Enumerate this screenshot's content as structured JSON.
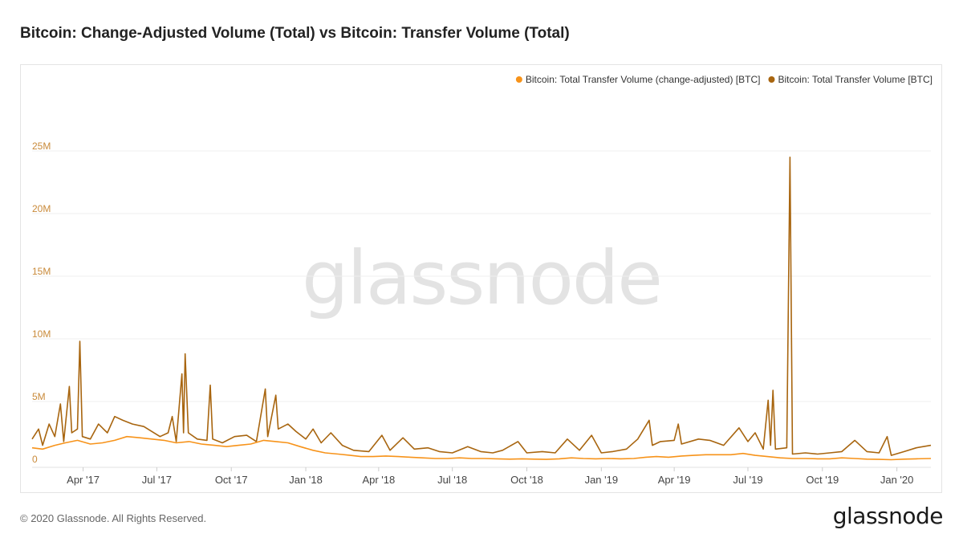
{
  "title": "Bitcoin: Change-Adjusted Volume (Total) vs Bitcoin: Transfer Volume (Total)",
  "footer": {
    "copyright": "© 2020 Glassnode. All Rights Reserved.",
    "brand": "glassnode"
  },
  "watermark": "glassnode",
  "colors": {
    "series1": "#f7931a",
    "series2": "#a8650f",
    "axis_label": "#c98a3a",
    "grid": "#efefef"
  },
  "chart_data": {
    "type": "line",
    "title": "Bitcoin: Change-Adjusted Volume (Total) vs Bitcoin: Transfer Volume (Total)",
    "xlabel": "",
    "ylabel": "",
    "x_range": [
      "2017-01-28",
      "2020-02-12"
    ],
    "ylim": [
      0,
      25000000
    ],
    "y_ticks": [
      {
        "value": 0,
        "label": "0"
      },
      {
        "value": 5000000,
        "label": "5M"
      },
      {
        "value": 10000000,
        "label": "10M"
      },
      {
        "value": 15000000,
        "label": "15M"
      },
      {
        "value": 20000000,
        "label": "20M"
      },
      {
        "value": 25000000,
        "label": "25M"
      }
    ],
    "x_ticks": [
      {
        "date": "2017-04-01",
        "label": "Apr '17"
      },
      {
        "date": "2017-07-01",
        "label": "Jul '17"
      },
      {
        "date": "2017-10-01",
        "label": "Oct '17"
      },
      {
        "date": "2018-01-01",
        "label": "Jan '18"
      },
      {
        "date": "2018-04-01",
        "label": "Apr '18"
      },
      {
        "date": "2018-07-01",
        "label": "Jul '18"
      },
      {
        "date": "2018-10-01",
        "label": "Oct '18"
      },
      {
        "date": "2019-01-01",
        "label": "Jan '19"
      },
      {
        "date": "2019-04-01",
        "label": "Apr '19"
      },
      {
        "date": "2019-07-01",
        "label": "Jul '19"
      },
      {
        "date": "2019-10-01",
        "label": "Oct '19"
      },
      {
        "date": "2020-01-01",
        "label": "Jan '20"
      }
    ],
    "legend_position": "top-right",
    "grid": true,
    "series": [
      {
        "name": "Bitcoin: Total Transfer Volume (change-adjusted) [BTC]",
        "color": "#f7931a",
        "points": [
          [
            "2017-01-28",
            1300000
          ],
          [
            "2017-02-10",
            1200000
          ],
          [
            "2017-02-25",
            1500000
          ],
          [
            "2017-03-10",
            1700000
          ],
          [
            "2017-03-25",
            1900000
          ],
          [
            "2017-04-10",
            1600000
          ],
          [
            "2017-04-25",
            1700000
          ],
          [
            "2017-05-10",
            1900000
          ],
          [
            "2017-05-25",
            2200000
          ],
          [
            "2017-06-10",
            2100000
          ],
          [
            "2017-06-25",
            2000000
          ],
          [
            "2017-07-10",
            1900000
          ],
          [
            "2017-07-25",
            1700000
          ],
          [
            "2017-08-10",
            1800000
          ],
          [
            "2017-08-25",
            1600000
          ],
          [
            "2017-09-10",
            1500000
          ],
          [
            "2017-09-25",
            1400000
          ],
          [
            "2017-10-10",
            1500000
          ],
          [
            "2017-10-25",
            1600000
          ],
          [
            "2017-11-10",
            1900000
          ],
          [
            "2017-11-25",
            1800000
          ],
          [
            "2017-12-10",
            1700000
          ],
          [
            "2017-12-25",
            1400000
          ],
          [
            "2018-01-10",
            1100000
          ],
          [
            "2018-01-25",
            900000
          ],
          [
            "2018-02-10",
            800000
          ],
          [
            "2018-02-25",
            700000
          ],
          [
            "2018-03-10",
            600000
          ],
          [
            "2018-03-25",
            600000
          ],
          [
            "2018-04-10",
            650000
          ],
          [
            "2018-04-25",
            600000
          ],
          [
            "2018-05-10",
            550000
          ],
          [
            "2018-05-25",
            500000
          ],
          [
            "2018-06-10",
            450000
          ],
          [
            "2018-06-25",
            450000
          ],
          [
            "2018-07-10",
            500000
          ],
          [
            "2018-07-25",
            450000
          ],
          [
            "2018-08-10",
            450000
          ],
          [
            "2018-08-25",
            420000
          ],
          [
            "2018-09-10",
            400000
          ],
          [
            "2018-09-25",
            420000
          ],
          [
            "2018-10-10",
            400000
          ],
          [
            "2018-10-25",
            380000
          ],
          [
            "2018-11-10",
            420000
          ],
          [
            "2018-11-25",
            500000
          ],
          [
            "2018-12-10",
            450000
          ],
          [
            "2018-12-25",
            420000
          ],
          [
            "2019-01-10",
            450000
          ],
          [
            "2019-01-25",
            420000
          ],
          [
            "2019-02-10",
            450000
          ],
          [
            "2019-02-25",
            550000
          ],
          [
            "2019-03-10",
            600000
          ],
          [
            "2019-03-25",
            550000
          ],
          [
            "2019-04-10",
            650000
          ],
          [
            "2019-04-25",
            700000
          ],
          [
            "2019-05-10",
            750000
          ],
          [
            "2019-05-25",
            750000
          ],
          [
            "2019-06-10",
            750000
          ],
          [
            "2019-06-25",
            850000
          ],
          [
            "2019-07-10",
            700000
          ],
          [
            "2019-07-25",
            600000
          ],
          [
            "2019-08-10",
            500000
          ],
          [
            "2019-08-25",
            450000
          ],
          [
            "2019-09-10",
            450000
          ],
          [
            "2019-09-25",
            420000
          ],
          [
            "2019-10-10",
            420000
          ],
          [
            "2019-10-25",
            500000
          ],
          [
            "2019-11-10",
            450000
          ],
          [
            "2019-11-25",
            400000
          ],
          [
            "2019-12-10",
            380000
          ],
          [
            "2019-12-25",
            350000
          ],
          [
            "2020-01-10",
            400000
          ],
          [
            "2020-01-25",
            420000
          ],
          [
            "2020-02-12",
            450000
          ]
        ]
      },
      {
        "name": "Bitcoin: Total Transfer Volume [BTC]",
        "color": "#a8650f",
        "points": [
          [
            "2017-01-28",
            2000000
          ],
          [
            "2017-02-05",
            2800000
          ],
          [
            "2017-02-10",
            1500000
          ],
          [
            "2017-02-18",
            3200000
          ],
          [
            "2017-02-25",
            2200000
          ],
          [
            "2017-03-04",
            4800000
          ],
          [
            "2017-03-08",
            1800000
          ],
          [
            "2017-03-15",
            6200000
          ],
          [
            "2017-03-18",
            2500000
          ],
          [
            "2017-03-25",
            2800000
          ],
          [
            "2017-03-28",
            9800000
          ],
          [
            "2017-03-31",
            2200000
          ],
          [
            "2017-04-10",
            2000000
          ],
          [
            "2017-04-20",
            3200000
          ],
          [
            "2017-05-01",
            2500000
          ],
          [
            "2017-05-10",
            3800000
          ],
          [
            "2017-05-20",
            3500000
          ],
          [
            "2017-06-01",
            3200000
          ],
          [
            "2017-06-15",
            3000000
          ],
          [
            "2017-06-25",
            2600000
          ],
          [
            "2017-07-05",
            2200000
          ],
          [
            "2017-07-15",
            2500000
          ],
          [
            "2017-07-20",
            3800000
          ],
          [
            "2017-07-25",
            1800000
          ],
          [
            "2017-08-01",
            7200000
          ],
          [
            "2017-08-03",
            2500000
          ],
          [
            "2017-08-05",
            8800000
          ],
          [
            "2017-08-09",
            2500000
          ],
          [
            "2017-08-20",
            2000000
          ],
          [
            "2017-09-01",
            1900000
          ],
          [
            "2017-09-05",
            6300000
          ],
          [
            "2017-09-08",
            2000000
          ],
          [
            "2017-09-20",
            1700000
          ],
          [
            "2017-10-05",
            2200000
          ],
          [
            "2017-10-20",
            2300000
          ],
          [
            "2017-11-01",
            1800000
          ],
          [
            "2017-11-12",
            6000000
          ],
          [
            "2017-11-15",
            2200000
          ],
          [
            "2017-11-25",
            5500000
          ],
          [
            "2017-11-28",
            2800000
          ],
          [
            "2017-12-10",
            3200000
          ],
          [
            "2017-12-20",
            2600000
          ],
          [
            "2018-01-01",
            2000000
          ],
          [
            "2018-01-10",
            2800000
          ],
          [
            "2018-01-20",
            1700000
          ],
          [
            "2018-02-01",
            2500000
          ],
          [
            "2018-02-15",
            1500000
          ],
          [
            "2018-03-01",
            1100000
          ],
          [
            "2018-03-20",
            1000000
          ],
          [
            "2018-04-05",
            2300000
          ],
          [
            "2018-04-15",
            1100000
          ],
          [
            "2018-05-01",
            2100000
          ],
          [
            "2018-05-15",
            1200000
          ],
          [
            "2018-06-01",
            1300000
          ],
          [
            "2018-06-15",
            1000000
          ],
          [
            "2018-07-01",
            900000
          ],
          [
            "2018-07-20",
            1400000
          ],
          [
            "2018-08-05",
            1000000
          ],
          [
            "2018-08-20",
            900000
          ],
          [
            "2018-09-01",
            1100000
          ],
          [
            "2018-09-20",
            1800000
          ],
          [
            "2018-10-01",
            900000
          ],
          [
            "2018-10-20",
            1000000
          ],
          [
            "2018-11-05",
            900000
          ],
          [
            "2018-11-20",
            2000000
          ],
          [
            "2018-12-05",
            1100000
          ],
          [
            "2018-12-20",
            2300000
          ],
          [
            "2019-01-01",
            900000
          ],
          [
            "2019-01-15",
            1000000
          ],
          [
            "2019-02-01",
            1200000
          ],
          [
            "2019-02-15",
            2000000
          ],
          [
            "2019-03-01",
            3500000
          ],
          [
            "2019-03-05",
            1500000
          ],
          [
            "2019-03-15",
            1800000
          ],
          [
            "2019-04-01",
            1900000
          ],
          [
            "2019-04-06",
            3200000
          ],
          [
            "2019-04-10",
            1600000
          ],
          [
            "2019-05-01",
            2000000
          ],
          [
            "2019-05-15",
            1900000
          ],
          [
            "2019-06-01",
            1500000
          ],
          [
            "2019-06-20",
            2900000
          ],
          [
            "2019-07-01",
            1800000
          ],
          [
            "2019-07-10",
            2500000
          ],
          [
            "2019-07-20",
            1200000
          ],
          [
            "2019-07-26",
            5100000
          ],
          [
            "2019-07-29",
            1500000
          ],
          [
            "2019-08-01",
            5900000
          ],
          [
            "2019-08-04",
            1200000
          ],
          [
            "2019-08-18",
            1300000
          ],
          [
            "2019-08-22",
            24500000
          ],
          [
            "2019-08-25",
            800000
          ],
          [
            "2019-09-10",
            900000
          ],
          [
            "2019-09-25",
            800000
          ],
          [
            "2019-10-10",
            900000
          ],
          [
            "2019-10-25",
            1000000
          ],
          [
            "2019-11-10",
            1900000
          ],
          [
            "2019-11-25",
            1000000
          ],
          [
            "2019-12-10",
            900000
          ],
          [
            "2019-12-20",
            2200000
          ],
          [
            "2019-12-25",
            700000
          ],
          [
            "2020-01-10",
            1000000
          ],
          [
            "2020-01-25",
            1300000
          ],
          [
            "2020-02-12",
            1500000
          ]
        ]
      }
    ]
  }
}
